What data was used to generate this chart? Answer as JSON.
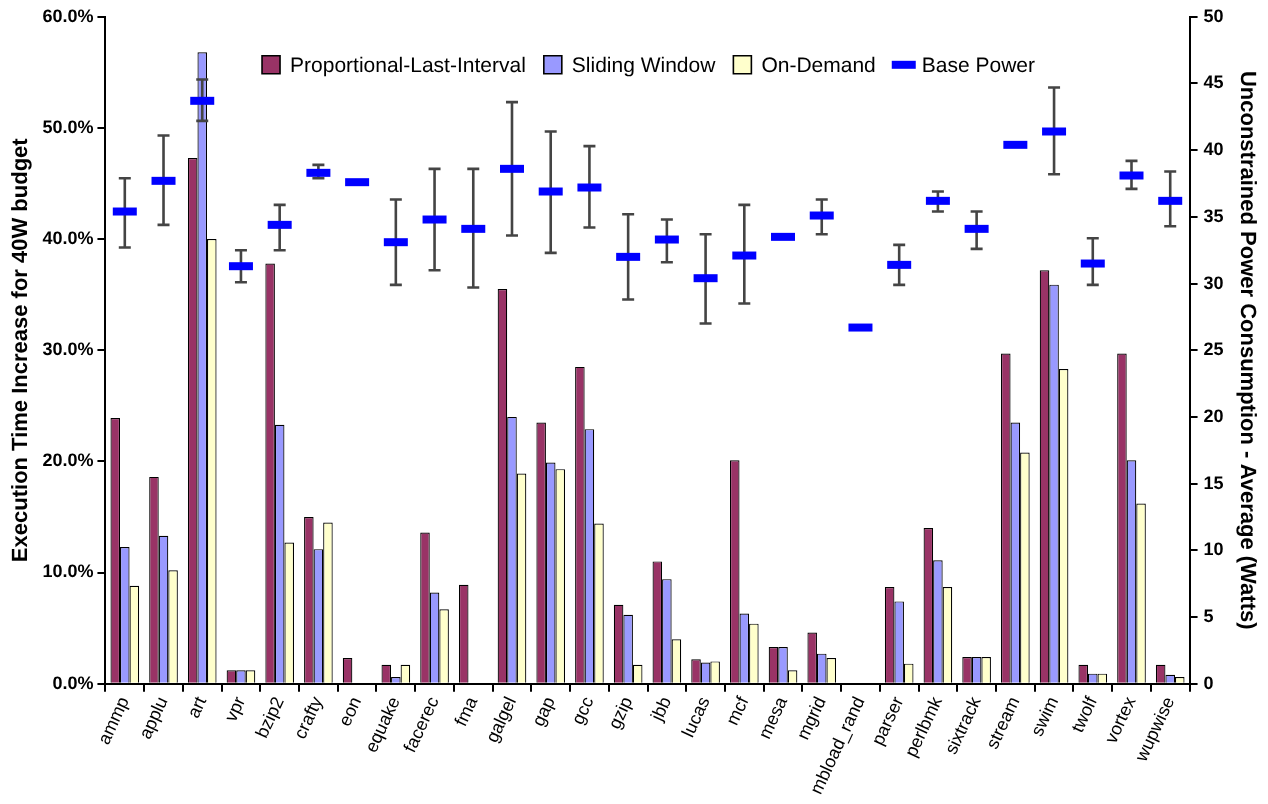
{
  "chart_data": {
    "type": "bar",
    "categories": [
      "ammp",
      "applu",
      "art",
      "vpr",
      "bzip2",
      "crafty",
      "eon",
      "equake",
      "facerec",
      "fma",
      "galgel",
      "gap",
      "gcc",
      "gzip",
      "jbb",
      "lucas",
      "mcf",
      "mesa",
      "mgrid",
      "mbload_rand",
      "parser",
      "perlbmk",
      "sixtrack",
      "stream",
      "swim",
      "twolf",
      "vortex",
      "wupwise"
    ],
    "series": [
      {
        "name": "Proportional-Last-Interval",
        "color": "#993366",
        "values": [
          23.9,
          18.6,
          47.3,
          1.2,
          37.8,
          15.0,
          2.3,
          1.7,
          13.6,
          8.9,
          35.5,
          23.5,
          28.5,
          7.1,
          11.0,
          2.2,
          20.1,
          3.3,
          4.6,
          null,
          8.7,
          14.0,
          2.4,
          29.7,
          37.2,
          1.7,
          29.7,
          1.7
        ]
      },
      {
        "name": "Sliding Window",
        "color": "#9999ff",
        "values": [
          12.3,
          13.3,
          56.8,
          1.2,
          23.3,
          12.1,
          null,
          0.6,
          8.2,
          null,
          24.0,
          19.9,
          22.9,
          6.2,
          9.4,
          1.9,
          6.3,
          3.3,
          2.7,
          null,
          7.4,
          11.1,
          2.4,
          23.5,
          35.9,
          0.9,
          20.1,
          0.8
        ]
      },
      {
        "name": "On-Demand",
        "color": "#ffffcc",
        "values": [
          8.8,
          10.2,
          40.0,
          1.2,
          12.7,
          14.5,
          null,
          1.7,
          6.7,
          null,
          18.9,
          19.3,
          14.4,
          1.7,
          4.0,
          2.0,
          5.4,
          1.2,
          2.3,
          null,
          1.8,
          8.7,
          2.4,
          20.8,
          28.3,
          0.9,
          16.2,
          0.6
        ]
      },
      {
        "name": "Base Power",
        "type": "scatter",
        "axis": "y2",
        "color": "#0000ff",
        "values": [
          35.4,
          37.7,
          43.7,
          31.3,
          34.4,
          38.3,
          37.6,
          33.1,
          34.8,
          34.1,
          38.6,
          36.9,
          37.2,
          32.0,
          33.3,
          30.4,
          32.1,
          33.5,
          35.1,
          26.7,
          31.4,
          36.2,
          34.1,
          40.4,
          41.4,
          31.5,
          38.1,
          36.2
        ],
        "errors": [
          [
            32.7,
            37.9
          ],
          [
            34.4,
            41.1
          ],
          [
            42.2,
            45.3
          ],
          [
            30.1,
            32.5
          ],
          [
            32.5,
            35.9
          ],
          [
            37.9,
            38.9
          ],
          null,
          [
            29.9,
            36.3
          ],
          [
            31.0,
            38.6
          ],
          [
            29.7,
            38.6
          ],
          [
            33.6,
            43.6
          ],
          [
            32.3,
            41.4
          ],
          [
            34.2,
            40.3
          ],
          [
            28.8,
            35.2
          ],
          [
            31.6,
            34.8
          ],
          [
            27.0,
            33.7
          ],
          [
            28.5,
            35.9
          ],
          [
            33.4,
            33.6
          ],
          [
            33.7,
            36.3
          ],
          null,
          [
            29.9,
            32.9
          ],
          [
            35.4,
            36.9
          ],
          [
            32.6,
            35.4
          ],
          null,
          [
            38.2,
            44.7
          ],
          [
            29.9,
            33.4
          ],
          [
            37.1,
            39.2
          ],
          [
            34.3,
            38.4
          ]
        ]
      }
    ],
    "ylabel": "Execution Time Increase for 40W budget",
    "y2label": "Unconstrained Power Consumption - Average (Watts)",
    "ylim": [
      0,
      60
    ],
    "yticks": [
      {
        "value": 0,
        "label": "0.0%"
      },
      {
        "value": 10,
        "label": "10.0%"
      },
      {
        "value": 20,
        "label": "20.0%"
      },
      {
        "value": 30,
        "label": "30.0%"
      },
      {
        "value": 40,
        "label": "40.0%"
      },
      {
        "value": 50,
        "label": "50.0%"
      },
      {
        "value": 60,
        "label": "60.0%"
      }
    ],
    "y2lim": [
      0,
      50
    ],
    "y2ticks": [
      0,
      5,
      10,
      15,
      20,
      25,
      30,
      35,
      40,
      45,
      50
    ],
    "legend": "top"
  }
}
